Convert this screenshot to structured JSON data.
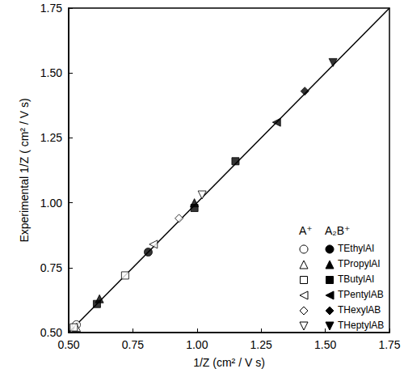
{
  "chart_data": {
    "type": "scatter",
    "xlabel": "1/Z (cm² / V s)",
    "ylabel": "Experimental 1/Z ( cm² / V s)",
    "xlim": [
      0.5,
      1.75
    ],
    "ylim": [
      0.5,
      1.75
    ],
    "xticks": [
      {
        "value": 0.5,
        "label": "0.50"
      },
      {
        "value": 0.75,
        "label": "0.75"
      },
      {
        "value": 1.0,
        "label": "1.00"
      },
      {
        "value": 1.25,
        "label": "1.25"
      },
      {
        "value": 1.5,
        "label": "1.50"
      },
      {
        "value": 1.75,
        "label": "1.75"
      }
    ],
    "yticks": [
      {
        "value": 0.5,
        "label": "0.50"
      },
      {
        "value": 0.75,
        "label": "0.75"
      },
      {
        "value": 1.0,
        "label": "1.00"
      },
      {
        "value": 1.25,
        "label": "1.25"
      },
      {
        "value": 1.5,
        "label": "1.50"
      },
      {
        "value": 1.75,
        "label": "1.75"
      }
    ],
    "grid": false,
    "legend": "lower right",
    "fit_line": {
      "x": [
        0.5,
        1.75
      ],
      "y": [
        0.5,
        1.75
      ],
      "color": "#000000"
    },
    "series": [
      {
        "name": "TEthylAI",
        "group": "A⁺",
        "marker": "circle-open",
        "color": "#000000",
        "x": [
          0.53
        ],
        "y": [
          0.53
        ]
      },
      {
        "name": "TPropylAI",
        "group": "A⁺",
        "marker": "triangle-up-open",
        "color": "#000000",
        "x": [
          0.53
        ],
        "y": [
          0.52
        ]
      },
      {
        "name": "TButylAI",
        "group": "A⁺",
        "marker": "square-open",
        "color": "#000000",
        "x": [
          0.52,
          0.72
        ],
        "y": [
          0.52,
          0.72
        ]
      },
      {
        "name": "TPentylAB",
        "group": "A⁺",
        "marker": "triangle-left-open",
        "color": "#000000",
        "x": [
          0.83
        ],
        "y": [
          0.84
        ]
      },
      {
        "name": "THexylAB",
        "group": "A⁺",
        "marker": "diamond-open",
        "color": "#000000",
        "x": [
          0.93
        ],
        "y": [
          0.94
        ]
      },
      {
        "name": "THeptylAB",
        "group": "A⁺",
        "marker": "triangle-down-open",
        "color": "#000000",
        "x": [
          1.02
        ],
        "y": [
          1.03
        ]
      },
      {
        "name": "TEthylAI",
        "group": "A₂B⁺",
        "marker": "circle",
        "color": "#000000",
        "x": [
          0.81
        ],
        "y": [
          0.81
        ]
      },
      {
        "name": "TPropylAI",
        "group": "A₂B⁺",
        "marker": "triangle-up",
        "color": "#000000",
        "x": [
          0.62,
          0.99
        ],
        "y": [
          0.63,
          1.0
        ]
      },
      {
        "name": "TButylAI",
        "group": "A₂B⁺",
        "marker": "square",
        "color": "#000000",
        "x": [
          0.61,
          0.99,
          1.15
        ],
        "y": [
          0.61,
          0.98,
          1.16
        ]
      },
      {
        "name": "TPentylAB",
        "group": "A₂B⁺",
        "marker": "triangle-left",
        "color": "#000000",
        "x": [
          1.31
        ],
        "y": [
          1.31
        ]
      },
      {
        "name": "THexylAB",
        "group": "A₂B⁺",
        "marker": "diamond",
        "color": "#000000",
        "x": [
          1.42
        ],
        "y": [
          1.43
        ]
      },
      {
        "name": "THeptylAB",
        "group": "A₂B⁺",
        "marker": "triangle-down",
        "color": "#000000",
        "x": [
          1.53
        ],
        "y": [
          1.54
        ]
      }
    ]
  }
}
